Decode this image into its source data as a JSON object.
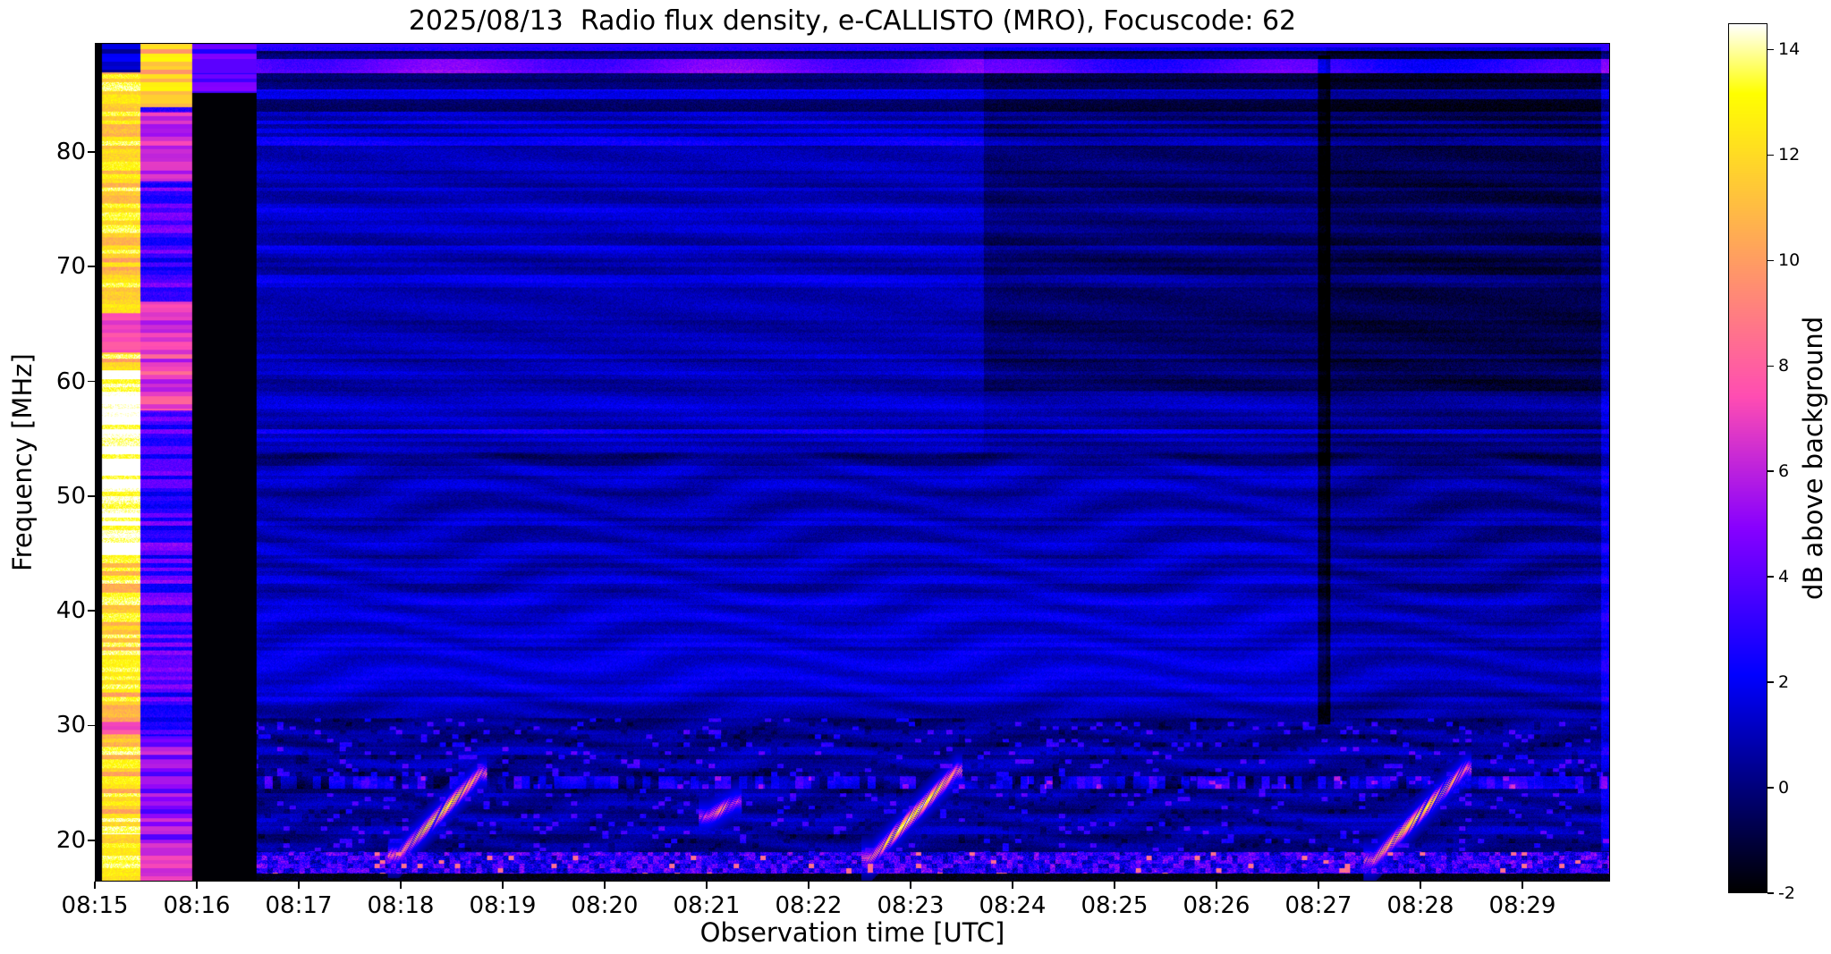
{
  "chart_data": {
    "type": "heatmap",
    "title": "2025/08/13  Radio flux density, e-CALLISTO (MRO), Focuscode: 62",
    "xlabel": "Observation time [UTC]",
    "ylabel": "Frequency [MHz]",
    "x_tick_labels": [
      "08:15",
      "08:16",
      "08:17",
      "08:18",
      "08:19",
      "08:20",
      "08:21",
      "08:22",
      "08:23",
      "08:24",
      "08:25",
      "08:26",
      "08:27",
      "08:28",
      "08:29"
    ],
    "y_tick_values": [
      20,
      30,
      40,
      50,
      60,
      70,
      80
    ],
    "time_range_min": [
      0,
      14.86
    ],
    "freq_range_mhz": [
      16.4,
      89.5
    ],
    "grid": false,
    "legend": "none",
    "colorbar": {
      "label": "dB above background",
      "tick_values": [
        -2,
        0,
        2,
        4,
        6,
        8,
        10,
        12,
        14
      ],
      "vmin": -2,
      "vmax": 14.5,
      "colormap": "gnuplot2"
    },
    "features": {
      "dark_leading_column": {
        "t": [
          0,
          0.06
        ]
      },
      "calibration_band_bright": {
        "t": [
          0.06,
          0.44
        ],
        "level_db": [
          10,
          15
        ],
        "desc": "yellow/white calibration band with horizontal striations, white 45-61 MHz, magenta rows near 30 and 63-66 MHz"
      },
      "calibration_band_faint": {
        "t": [
          0.44,
          0.95
        ],
        "level_db": [
          2,
          8
        ],
        "desc": "blue/violet striped band, magenta 58-67 MHz, orange rows above 84 MHz"
      },
      "blank_gap": {
        "t": [
          0.95,
          1.58
        ],
        "level_db": -2,
        "desc": "black data gap, blue rows above 85 MHz"
      },
      "background_steps": [
        {
          "t_after": 8.72,
          "f_above": 59.2,
          "delta_db": -0.75
        },
        {
          "t_after": 12.08,
          "f_above": 31.4,
          "delta_db": -0.55
        }
      ],
      "bursts": [
        {
          "label": "drifting burst",
          "t0": 2.97,
          "t1": 3.78,
          "f_start": 18.6,
          "f_end": 25.8,
          "peak_db": 11
        },
        {
          "label": "weak burst patch",
          "t0": 6.02,
          "t1": 6.28,
          "f_start": 22.0,
          "f_end": 23.3,
          "peak_db": 8
        },
        {
          "label": "drifting burst",
          "t0": 7.62,
          "t1": 8.45,
          "f_start": 18.4,
          "f_end": 26.0,
          "peak_db": 12
        },
        {
          "label": "drifting burst",
          "t0": 12.55,
          "t1": 13.45,
          "f_start": 18.2,
          "f_end": 26.2,
          "peak_db": 11
        }
      ],
      "interference_rows": [
        {
          "f": [
            17.0,
            18.9
          ],
          "desc": "bright speckled RFI band along bottom"
        },
        {
          "f": [
            24.4,
            25.6
          ],
          "desc": "dashed RFI line"
        },
        {
          "f": [
            87.0,
            88.2
          ],
          "desc": "bright channel line across full width"
        }
      ]
    }
  }
}
